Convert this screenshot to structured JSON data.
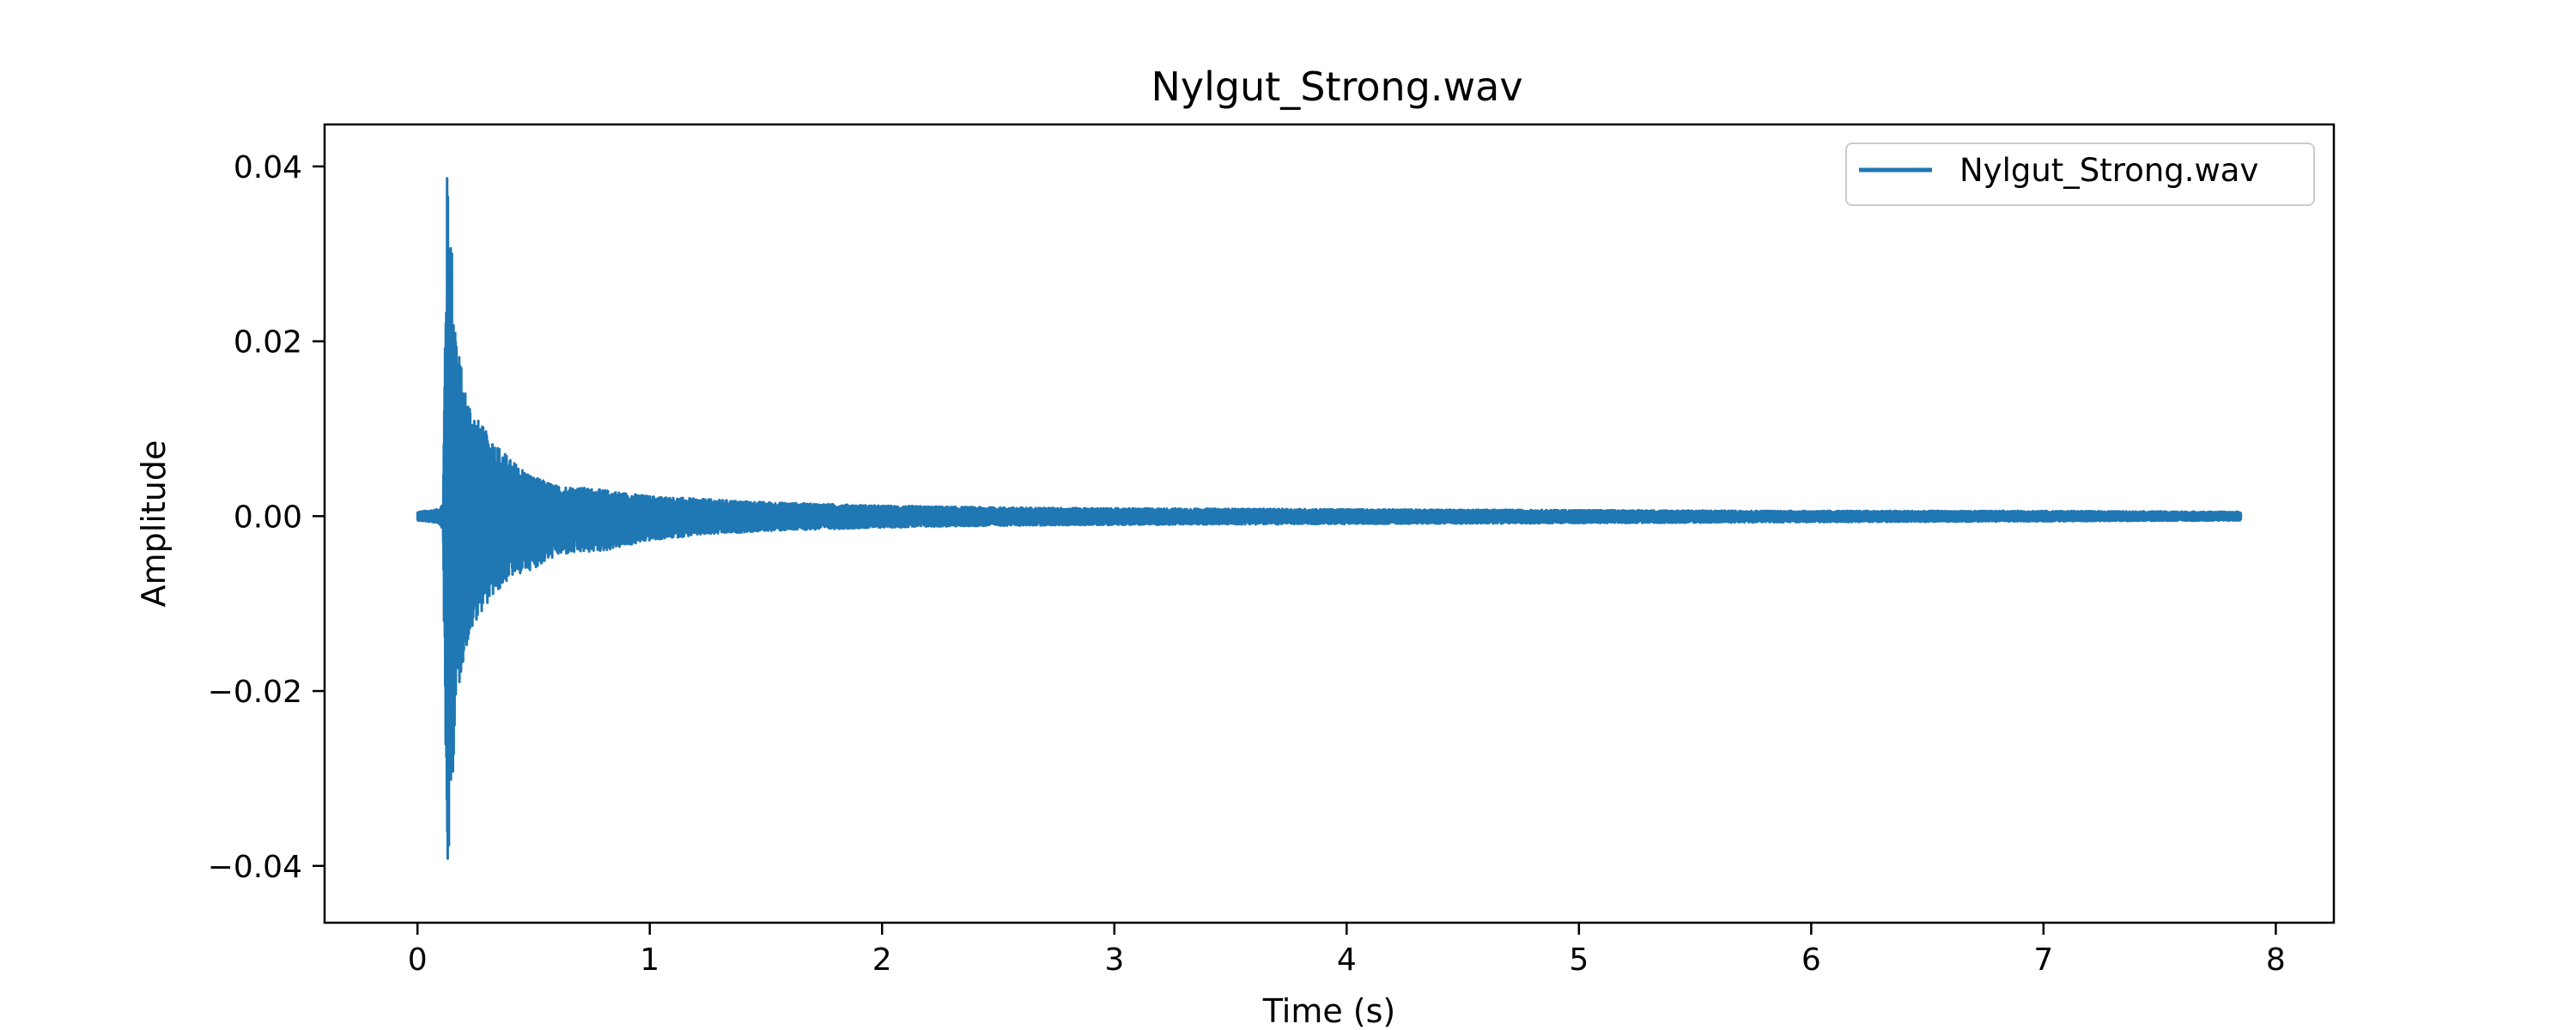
{
  "chart_data": {
    "type": "line",
    "title": "Nylgut_Strong.wav",
    "xlabel": "Time (s)",
    "ylabel": "Amplitude",
    "xlim": [
      -0.4,
      8.25
    ],
    "ylim": [
      -0.0465,
      0.0448
    ],
    "xticks": [
      0,
      1,
      2,
      3,
      4,
      5,
      6,
      7,
      8
    ],
    "xtick_labels": [
      "0",
      "1",
      "2",
      "3",
      "4",
      "5",
      "6",
      "7",
      "8"
    ],
    "yticks": [
      0.04,
      0.02,
      0.0,
      -0.02,
      -0.04
    ],
    "ytick_labels": [
      "0.04",
      "0.02",
      "0.00",
      "−0.02",
      "−0.04"
    ],
    "grid": false,
    "legend_position": "top-right",
    "series": [
      {
        "name": "Nylgut_Strong.wav",
        "color": "#1f77b4",
        "envelope": {
          "x": [
            0.0,
            0.09,
            0.11,
            0.125,
            0.13,
            0.14,
            0.155,
            0.17,
            0.2,
            0.25,
            0.3,
            0.35,
            0.4,
            0.5,
            0.6,
            0.7,
            0.8,
            1.0,
            1.2,
            1.5,
            2.0,
            2.5,
            3.0,
            4.0,
            5.0,
            6.0,
            7.0,
            7.85
          ],
          "upper": [
            0.0005,
            0.0008,
            0.0015,
            0.038,
            0.0405,
            0.036,
            0.027,
            0.0205,
            0.015,
            0.0115,
            0.0095,
            0.008,
            0.0065,
            0.0045,
            0.0035,
            0.0033,
            0.003,
            0.0023,
            0.002,
            0.0016,
            0.0012,
            0.001,
            0.0009,
            0.0008,
            0.0007,
            0.0006,
            0.0006,
            0.0005
          ],
          "lower": [
            -0.0005,
            -0.0008,
            -0.0015,
            -0.04,
            -0.0425,
            -0.037,
            -0.028,
            -0.0215,
            -0.016,
            -0.012,
            -0.01,
            -0.0085,
            -0.007,
            -0.006,
            -0.0045,
            -0.0042,
            -0.004,
            -0.0028,
            -0.0022,
            -0.0017,
            -0.0013,
            -0.0011,
            -0.001,
            -0.0009,
            -0.0008,
            -0.0007,
            -0.0006,
            -0.0005
          ]
        }
      }
    ]
  }
}
